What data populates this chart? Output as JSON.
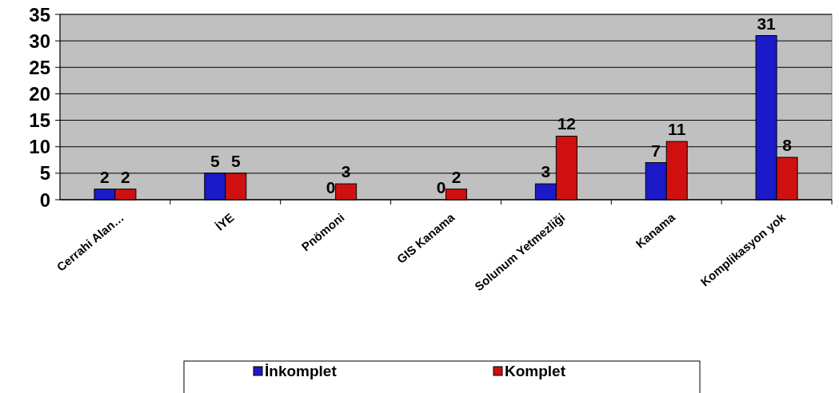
{
  "chart_data": {
    "type": "bar",
    "categories": [
      "Cerrahi Alan…",
      "İYE",
      "Pnömoni",
      "GIS Kanama",
      "Solunum Yetmezliği",
      "Kanama",
      "Komplikasyon yok"
    ],
    "series": [
      {
        "name": "İnkomplet",
        "color": "#1a1ac8",
        "values": [
          2,
          5,
          0,
          0,
          3,
          7,
          31
        ]
      },
      {
        "name": "Komplet",
        "color": "#d01010",
        "values": [
          2,
          5,
          3,
          2,
          12,
          11,
          8
        ]
      }
    ],
    "ylim": [
      0,
      35
    ],
    "yticks": [
      0,
      5,
      10,
      15,
      20,
      25,
      30,
      35
    ],
    "grid": "y",
    "legend": "bottom",
    "data_labels": true
  }
}
